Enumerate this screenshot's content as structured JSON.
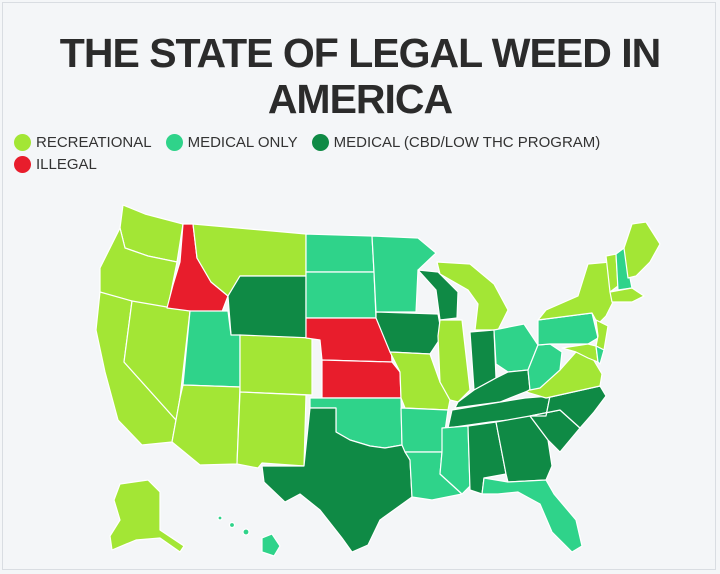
{
  "title": "THE STATE OF LEGAL WEED IN AMERICA",
  "legend": [
    {
      "key": "recreational",
      "label": "RECREATIONAL",
      "color": "#a3e635"
    },
    {
      "key": "medical",
      "label": "MEDICAL ONLY",
      "color": "#2fd38a"
    },
    {
      "key": "cbd",
      "label": "MEDICAL (CBD/LOW THC PROGRAM)",
      "color": "#0f8a45"
    },
    {
      "key": "illegal",
      "label": "ILLEGAL",
      "color": "#e81d2c"
    }
  ],
  "states": {
    "WA": "recreational",
    "OR": "recreational",
    "CA": "recreational",
    "NV": "recreational",
    "ID": "illegal",
    "MT": "recreational",
    "WY": "cbd",
    "UT": "medical",
    "AZ": "recreational",
    "CO": "recreational",
    "NM": "recreational",
    "ND": "medical",
    "SD": "medical",
    "NE": "illegal",
    "KS": "illegal",
    "OK": "medical",
    "TX": "cbd",
    "MN": "medical",
    "IA": "cbd",
    "MO": "recreational",
    "AR": "medical",
    "LA": "medical",
    "WI": "cbd",
    "IL": "recreational",
    "MI": "recreational",
    "IN": "cbd",
    "OH": "medical",
    "KY": "cbd",
    "TN": "cbd",
    "MS": "medical",
    "AL": "cbd",
    "GA": "cbd",
    "FL": "medical",
    "SC": "cbd",
    "NC": "cbd",
    "VA": "recreational",
    "WV": "medical",
    "PA": "medical",
    "NY": "recreational",
    "VT": "recreational",
    "NH": "medical",
    "ME": "recreational",
    "MA": "recreational",
    "NJ": "recreational",
    "MD": "recreational",
    "DE": "medical",
    "AK": "recreational",
    "HI": "medical"
  }
}
